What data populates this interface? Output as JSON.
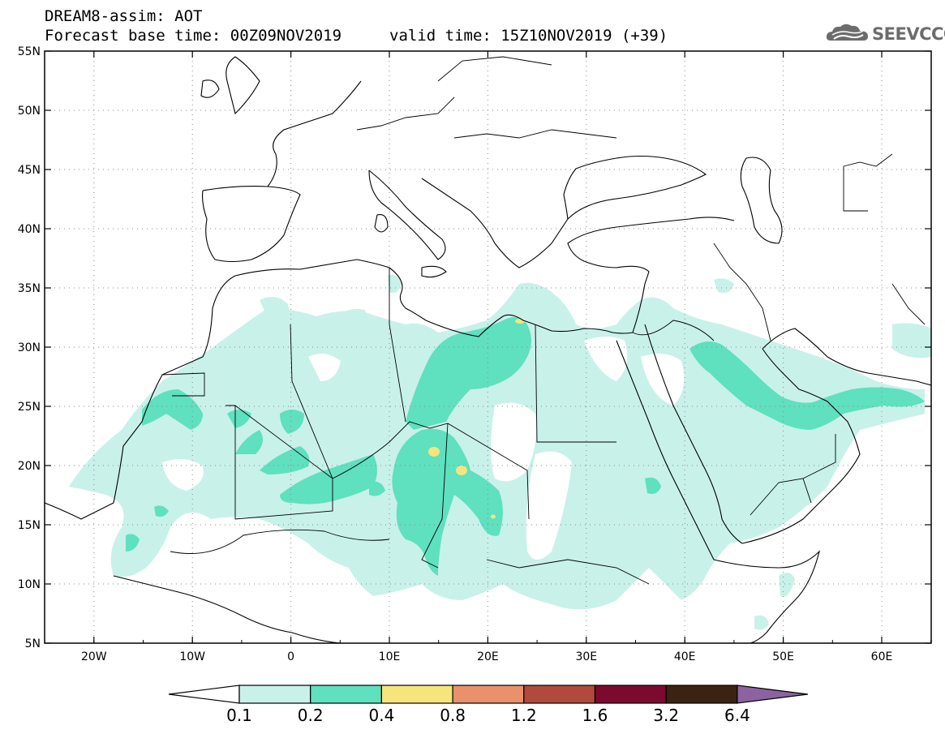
{
  "header": {
    "title": "DREAM8-assim: AOT",
    "base_time": "Forecast base time: 00Z09NOV2019",
    "valid_time": "valid time: 15Z10NOV2019 (+39)",
    "logo_text": "SEEVCCC",
    "logo_icon": "cloud-icon"
  },
  "map": {
    "lat_labels": [
      "55N",
      "50N",
      "45N",
      "40N",
      "35N",
      "30N",
      "25N",
      "20N",
      "15N",
      "10N",
      "5N"
    ],
    "lon_labels": [
      "20W",
      "10W",
      "0",
      "10E",
      "20E",
      "30E",
      "40E",
      "50E",
      "60E"
    ]
  },
  "legend": {
    "values": [
      "0.1",
      "0.2",
      "0.4",
      "0.8",
      "1.2",
      "1.6",
      "3.2",
      "6.4"
    ],
    "colors": [
      "#ffffff",
      "#c8f1ea",
      "#5fe0bf",
      "#f6e57d",
      "#e8916a",
      "#b04a3c",
      "#7b0a2e",
      "#3a2313",
      "#8c63a0"
    ]
  },
  "colors": {
    "light": "#c8f1ea",
    "mid": "#5fe0bf",
    "yellow": "#f6e57d",
    "line": "#000000"
  }
}
